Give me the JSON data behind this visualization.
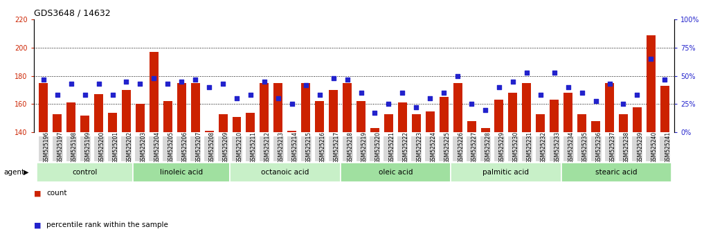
{
  "title": "GDS3648 / 14632",
  "samples": [
    "GSM525196",
    "GSM525197",
    "GSM525198",
    "GSM525199",
    "GSM525200",
    "GSM525201",
    "GSM525202",
    "GSM525203",
    "GSM525204",
    "GSM525205",
    "GSM525206",
    "GSM525207",
    "GSM525208",
    "GSM525209",
    "GSM525210",
    "GSM525211",
    "GSM525212",
    "GSM525213",
    "GSM525214",
    "GSM525215",
    "GSM525216",
    "GSM525217",
    "GSM525218",
    "GSM525219",
    "GSM525220",
    "GSM525221",
    "GSM525222",
    "GSM525223",
    "GSM525224",
    "GSM525225",
    "GSM525226",
    "GSM525227",
    "GSM525228",
    "GSM525229",
    "GSM525230",
    "GSM525231",
    "GSM525232",
    "GSM525233",
    "GSM525234",
    "GSM525235",
    "GSM525236",
    "GSM525237",
    "GSM525238",
    "GSM525239",
    "GSM525240",
    "GSM525241"
  ],
  "counts": [
    175,
    153,
    161,
    152,
    167,
    154,
    170,
    160,
    197,
    162,
    175,
    175,
    141,
    153,
    151,
    154,
    175,
    175,
    141,
    175,
    162,
    170,
    175,
    162,
    143,
    153,
    161,
    153,
    155,
    165,
    175,
    148,
    143,
    163,
    168,
    175,
    153,
    163,
    168,
    153,
    148,
    175,
    153,
    158,
    209,
    173
  ],
  "percentiles": [
    47,
    33,
    43,
    33,
    43,
    33,
    45,
    43,
    48,
    43,
    45,
    47,
    40,
    43,
    30,
    33,
    45,
    30,
    25,
    42,
    33,
    48,
    47,
    35,
    17,
    25,
    35,
    22,
    30,
    35,
    50,
    25,
    20,
    40,
    45,
    53,
    33,
    53,
    40,
    35,
    28,
    43,
    25,
    33,
    65,
    47
  ],
  "groups": [
    {
      "label": "control",
      "start": 0,
      "end": 7
    },
    {
      "label": "linoleic acid",
      "start": 7,
      "end": 14
    },
    {
      "label": "octanoic acid",
      "start": 14,
      "end": 22
    },
    {
      "label": "oleic acid",
      "start": 22,
      "end": 30
    },
    {
      "label": "palmitic acid",
      "start": 30,
      "end": 38
    },
    {
      "label": "stearic acid",
      "start": 38,
      "end": 46
    }
  ],
  "group_colors": [
    "#c8f0c8",
    "#a0e0a0"
  ],
  "ylim_left": [
    140,
    220
  ],
  "ylim_right": [
    0,
    100
  ],
  "yticks_left": [
    140,
    160,
    180,
    200,
    220
  ],
  "yticks_right": [
    0,
    25,
    50,
    75,
    100
  ],
  "grid_lines": [
    160,
    180,
    200
  ],
  "bar_color": "#cc2200",
  "dot_color": "#2222cc",
  "bg_color": "#ffffff",
  "agent_label": "agent",
  "legend_count": "count",
  "legend_percentile": "percentile rank within the sample"
}
